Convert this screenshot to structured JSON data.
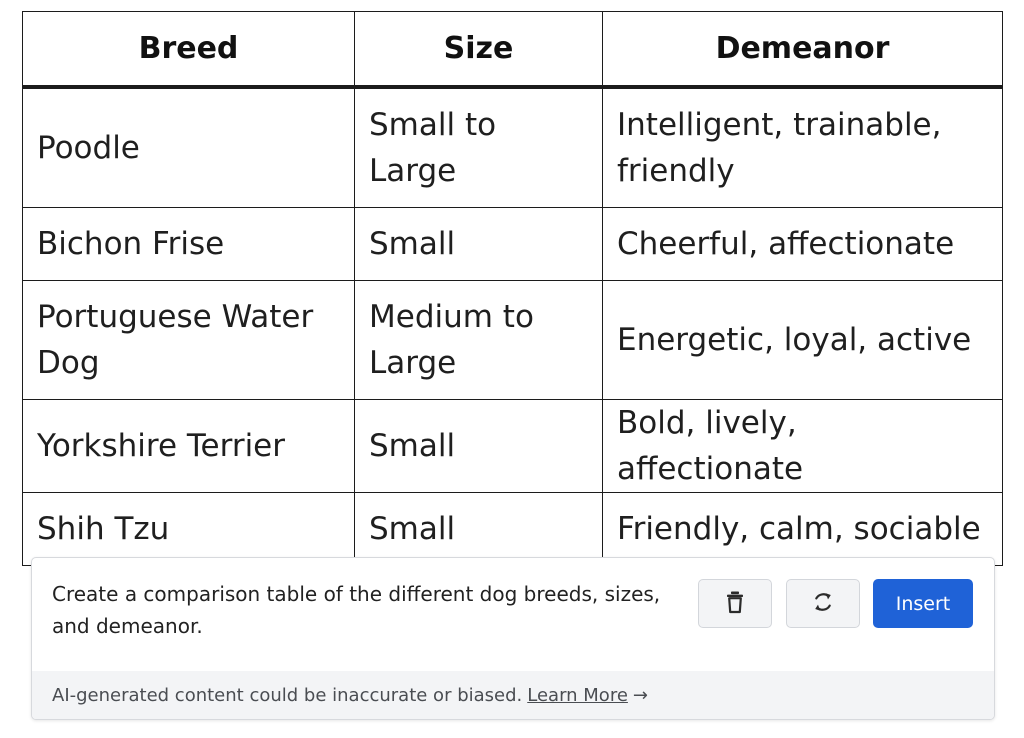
{
  "table": {
    "headers": [
      "Breed",
      "Size",
      "Demeanor"
    ],
    "rows": [
      [
        "Poodle",
        "Small to Large",
        "Intelligent, trainable, friendly"
      ],
      [
        "Bichon Frise",
        "Small",
        "Cheerful, affectionate"
      ],
      [
        "Portuguese Water Dog",
        "Medium to Large",
        "Energetic, loyal, active"
      ],
      [
        "Yorkshire Terrier",
        "Small",
        "Bold, lively, affectionate"
      ],
      [
        "Shih Tzu",
        "Small",
        "Friendly, calm, sociable"
      ]
    ]
  },
  "prompt": {
    "text": "Create a comparison table of the different dog breeds, sizes, and demeanor.",
    "delete_icon": "trash-icon",
    "regenerate_icon": "refresh-icon",
    "insert_label": "Insert",
    "accent_color": "#1f62d7"
  },
  "disclaimer": {
    "text": "AI-generated content could be inaccurate or biased.",
    "link_label": "Learn More",
    "arrow": "→"
  }
}
